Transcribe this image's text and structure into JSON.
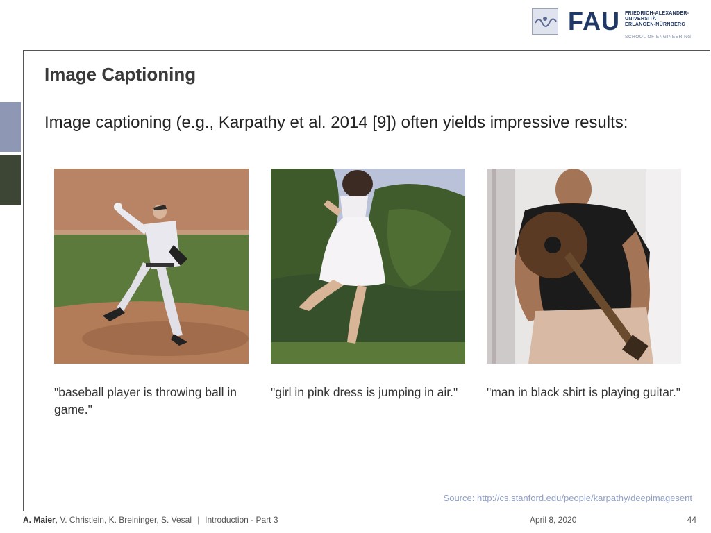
{
  "header": {
    "logo_word": "FAU",
    "logo_lines": [
      "FRIEDRICH-ALEXANDER-",
      "UNIVERSITÄT",
      "ERLANGEN-NÜRNBERG"
    ],
    "logo_school": "SCHOOL OF ENGINEERING"
  },
  "slide": {
    "title": "Image Captioning",
    "intro": "Image captioning (e.g., Karpathy et al. 2014 [9]) often yields impressive results:",
    "captions": [
      "\"baseball player is throwing ball in game.\"",
      "\"girl in pink dress is jumping in air.\"",
      "\"man in black shirt is playing guitar.\""
    ],
    "source": "Source: http://cs.stanford.edu/people/karpathy/deepimagesent"
  },
  "footer": {
    "author_bold": "A. Maier",
    "authors_rest": ", V. Christlein, K. Breininger, S. Vesal",
    "separator": "|",
    "lecture": "Introduction - Part 3",
    "date": "April 8, 2020",
    "page": "44"
  },
  "colors": {
    "accent_blue": "#8e98b5",
    "accent_dark": "#3d4634",
    "fau_blue": "#1f3866",
    "source_text": "#8fa0c8"
  }
}
